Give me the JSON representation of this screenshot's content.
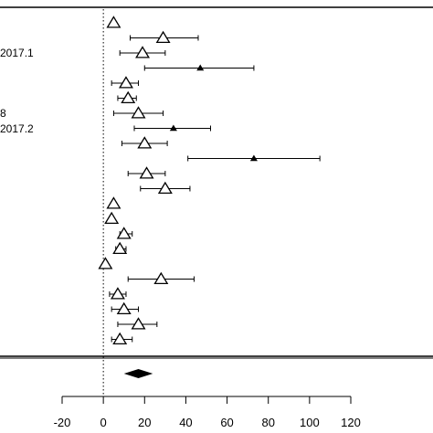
{
  "chart_data": {
    "type": "forest-plot",
    "xlim": [
      -20,
      120
    ],
    "x_ticks": [
      -20,
      0,
      20,
      40,
      60,
      80,
      100,
      120
    ],
    "x_tick_labels": [
      "-20",
      "0",
      "20",
      "40",
      "60",
      "80",
      "100",
      "120"
    ],
    "reference_line_x": 0,
    "row_labels": [
      {
        "row": 3,
        "text": "2017.1"
      },
      {
        "row": 8,
        "text": "8"
      },
      {
        "row": 9,
        "text": "2017.2"
      }
    ],
    "studies": [
      {
        "estimate": 5,
        "ci": [
          5,
          5
        ],
        "marker": "triangle"
      },
      {
        "estimate": 29,
        "ci": [
          13,
          46
        ],
        "marker": "triangle"
      },
      {
        "estimate": 19,
        "ci": [
          8,
          30
        ],
        "marker": "triangle"
      },
      {
        "estimate": 47,
        "ci": [
          20,
          73
        ],
        "marker": "small-triangle"
      },
      {
        "estimate": 11,
        "ci": [
          4,
          17
        ],
        "marker": "triangle"
      },
      {
        "estimate": 12,
        "ci": [
          7,
          16
        ],
        "marker": "triangle"
      },
      {
        "estimate": 17,
        "ci": [
          5,
          29
        ],
        "marker": "triangle"
      },
      {
        "estimate": 34,
        "ci": [
          15,
          52
        ],
        "marker": "small-triangle"
      },
      {
        "estimate": 20,
        "ci": [
          9,
          31
        ],
        "marker": "triangle"
      },
      {
        "estimate": 73,
        "ci": [
          41,
          105
        ],
        "marker": "small-triangle"
      },
      {
        "estimate": 21,
        "ci": [
          12,
          30
        ],
        "marker": "triangle"
      },
      {
        "estimate": 30,
        "ci": [
          18,
          42
        ],
        "marker": "triangle"
      },
      {
        "estimate": 5,
        "ci": [
          5,
          5
        ],
        "marker": "triangle"
      },
      {
        "estimate": 4,
        "ci": [
          4,
          4
        ],
        "marker": "triangle"
      },
      {
        "estimate": 10,
        "ci": [
          8,
          14
        ],
        "marker": "triangle"
      },
      {
        "estimate": 8,
        "ci": [
          6,
          11
        ],
        "marker": "triangle"
      },
      {
        "estimate": 1,
        "ci": [
          1,
          1
        ],
        "marker": "triangle"
      },
      {
        "estimate": 28,
        "ci": [
          12,
          44
        ],
        "marker": "triangle"
      },
      {
        "estimate": 7,
        "ci": [
          3,
          11
        ],
        "marker": "triangle"
      },
      {
        "estimate": 10,
        "ci": [
          4,
          17
        ],
        "marker": "triangle"
      },
      {
        "estimate": 17,
        "ci": [
          7,
          26
        ],
        "marker": "triangle"
      },
      {
        "estimate": 8,
        "ci": [
          4,
          14
        ],
        "marker": "triangle"
      }
    ],
    "pooled": {
      "estimate": 17,
      "ci": [
        10,
        24
      ]
    },
    "colors": {
      "line": "#000000",
      "marker_fill": "#ffffff",
      "background": "#ffffff"
    }
  }
}
